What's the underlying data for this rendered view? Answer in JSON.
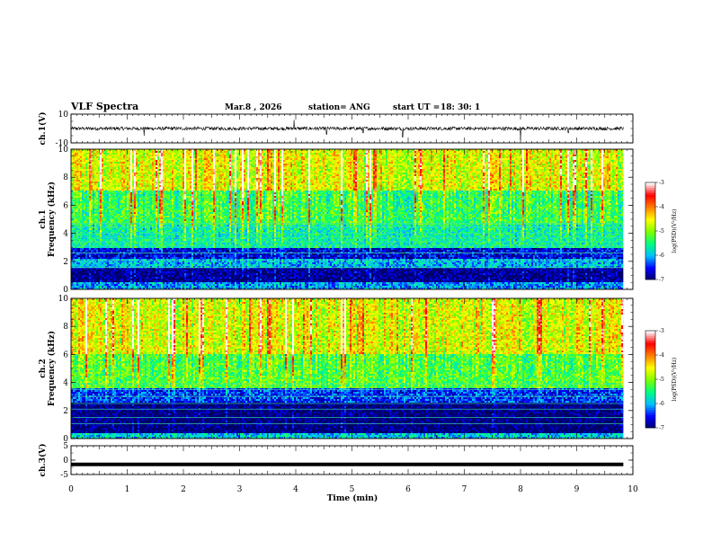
{
  "header": {
    "title": "VLF Spectra",
    "date": "Mar.8  , 2026",
    "station": "station= ANG",
    "start_label": "start  UT  =",
    "start_time": "18: 30: 1"
  },
  "chart_data": [
    {
      "type": "line",
      "id": "ch1-voltage",
      "ylabel": "ch.1(V)",
      "ylim": [
        -10,
        10
      ],
      "yticks": [
        "10",
        "-10"
      ],
      "xlim": [
        0,
        10
      ],
      "baseline": 0,
      "noise_amplitude": 1.2,
      "spikes": [
        {
          "t": 1.3,
          "v": -5
        },
        {
          "t": 3.97,
          "v": 6
        },
        {
          "t": 4.55,
          "v": -4
        },
        {
          "t": 5.2,
          "v": -3
        },
        {
          "t": 5.9,
          "v": -6
        },
        {
          "t": 8.0,
          "v": -8
        },
        {
          "t": 8.85,
          "v": -3
        }
      ]
    },
    {
      "type": "heatmap",
      "id": "ch1-spectrogram",
      "ylabel": "ch.1\nFrequency  (kHz)",
      "ylim": [
        0,
        10
      ],
      "yticks": [
        "0",
        "2",
        "4",
        "6",
        "8",
        "10"
      ],
      "xlim": [
        0,
        10
      ],
      "data_end_min": 9.83,
      "colorbar": {
        "label": "log(PSD)(V²/Hz)",
        "range": [
          -7,
          -3
        ],
        "ticks": [
          "-3",
          "-4",
          "-5",
          "-6",
          "-7"
        ]
      },
      "bands_khz": [
        {
          "lo": 0,
          "hi": 0.5,
          "level": -6.1
        },
        {
          "lo": 0.5,
          "hi": 1.5,
          "level": -6.9
        },
        {
          "lo": 1.5,
          "hi": 2.2,
          "level": -6.0
        },
        {
          "lo": 2.2,
          "hi": 3.0,
          "level": -6.6
        },
        {
          "lo": 3.0,
          "hi": 4.6,
          "level": -5.6
        },
        {
          "lo": 4.6,
          "hi": 7.0,
          "level": -5.3
        },
        {
          "lo": 7.0,
          "hi": 10.0,
          "level": -4.6
        }
      ],
      "tone_lines_khz": [
        1.55,
        2.05,
        2.6,
        3.1,
        3.4,
        3.7,
        4.0,
        4.45,
        4.7
      ]
    },
    {
      "type": "heatmap",
      "id": "ch2-spectrogram",
      "ylabel": "ch.2\nFrequency  (kHz)",
      "ylim": [
        0,
        10
      ],
      "yticks": [
        "0",
        "2",
        "4",
        "6",
        "8",
        "10"
      ],
      "xlim": [
        0,
        10
      ],
      "data_end_min": 9.83,
      "colorbar": {
        "label": "log(PSD)(V²/Hz)",
        "range": [
          -7,
          -3
        ],
        "ticks": [
          "-3",
          "-4",
          "-5",
          "-6",
          "-7"
        ]
      },
      "bands_khz": [
        {
          "lo": 0,
          "hi": 0.4,
          "level": -5.9
        },
        {
          "lo": 0.4,
          "hi": 2.6,
          "level": -7.0
        },
        {
          "lo": 2.6,
          "hi": 3.6,
          "level": -6.4
        },
        {
          "lo": 3.6,
          "hi": 6.0,
          "level": -5.2
        },
        {
          "lo": 6.0,
          "hi": 10.0,
          "level": -4.6
        }
      ],
      "tone_lines_khz": [
        1.05,
        1.5,
        2.1,
        2.5,
        3.0,
        3.5,
        3.9
      ]
    },
    {
      "type": "line",
      "id": "ch3-voltage",
      "ylabel": "ch.3(V)",
      "ylim": [
        -5,
        5
      ],
      "yticks": [
        "5",
        "0",
        "-5"
      ],
      "xlim": [
        0,
        10
      ],
      "baseline": -1.5
    }
  ],
  "xaxis": {
    "label": "Time  (min)",
    "ticks": [
      "0",
      "1",
      "2",
      "3",
      "4",
      "5",
      "6",
      "7",
      "8",
      "9",
      "10"
    ]
  },
  "colors": {
    "colormap": [
      "#000066",
      "#0000ff",
      "#00bfff",
      "#00ff80",
      "#80ff00",
      "#ffff00",
      "#ff8000",
      "#ff0000",
      "#ffffff"
    ]
  }
}
